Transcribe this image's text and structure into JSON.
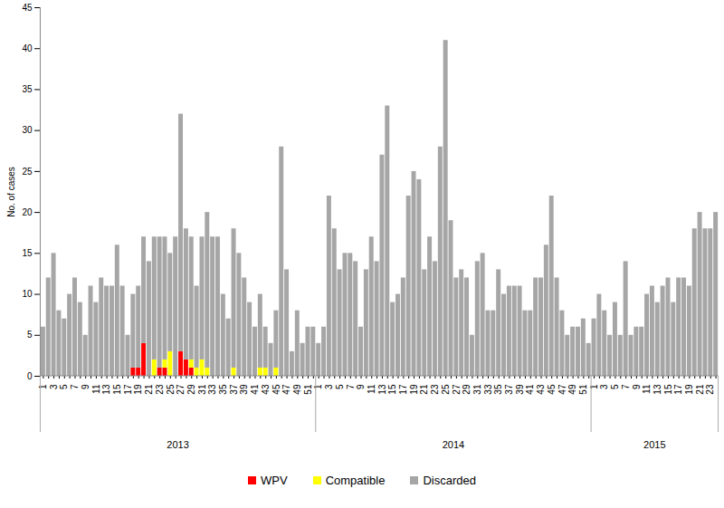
{
  "chart_data": {
    "type": "bar",
    "stacked": true,
    "y_label": "No. of cases",
    "ylim": [
      0,
      45
    ],
    "yticks": [
      0,
      5,
      10,
      15,
      20,
      25,
      30,
      35,
      40,
      45
    ],
    "grid": false,
    "legend": "bottom",
    "groups": [
      {
        "label": "2013",
        "count": 52
      },
      {
        "label": "2014",
        "count": 52
      },
      {
        "label": "2015",
        "count": 24
      }
    ],
    "categories": [
      "1",
      null,
      "3",
      null,
      "5",
      null,
      "7",
      null,
      "9",
      null,
      "11",
      null,
      "13",
      null,
      "15",
      null,
      "17",
      null,
      "19",
      null,
      "21",
      null,
      "23",
      null,
      "25",
      null,
      "27",
      null,
      "29",
      null,
      "31",
      null,
      "33",
      null,
      "35",
      null,
      "37",
      null,
      "39",
      null,
      "41",
      null,
      "43",
      null,
      "45",
      null,
      "47",
      null,
      "49",
      null,
      "51",
      null,
      "1",
      null,
      "3",
      null,
      "5",
      null,
      "7",
      null,
      "9",
      null,
      "11",
      null,
      "13",
      null,
      "15",
      null,
      "17",
      null,
      "19",
      null,
      "21",
      null,
      "23",
      null,
      "25",
      null,
      "27",
      null,
      "29",
      null,
      "31",
      null,
      "33",
      null,
      "35",
      null,
      "37",
      null,
      "39",
      null,
      "41",
      null,
      "43",
      null,
      "45",
      null,
      "47",
      null,
      "49",
      null,
      "51",
      null,
      "1",
      null,
      "3",
      null,
      "5",
      null,
      "7",
      null,
      "9",
      null,
      "11",
      null,
      "13",
      null,
      "15",
      null,
      "17",
      null,
      "19",
      null,
      "21",
      null,
      "23",
      null
    ],
    "series": [
      {
        "name": "WPV",
        "color": "#ff0000",
        "values": [
          0,
          0,
          0,
          0,
          0,
          0,
          0,
          0,
          0,
          0,
          0,
          0,
          0,
          0,
          0,
          0,
          0,
          1,
          1,
          4,
          0,
          0,
          1,
          1,
          0,
          0,
          3,
          2,
          1,
          0,
          0,
          0,
          0,
          0,
          0,
          0,
          0,
          0,
          0,
          0,
          0,
          0,
          0,
          0,
          0,
          0,
          0,
          0,
          0,
          0,
          0,
          0,
          0,
          0,
          0,
          0,
          0,
          0,
          0,
          0,
          0,
          0,
          0,
          0,
          0,
          0,
          0,
          0,
          0,
          0,
          0,
          0,
          0,
          0,
          0,
          0,
          0,
          0,
          0,
          0,
          0,
          0,
          0,
          0,
          0,
          0,
          0,
          0,
          0,
          0,
          0,
          0,
          0,
          0,
          0,
          0,
          0,
          0,
          0,
          0,
          0,
          0,
          0,
          0,
          0,
          0,
          0,
          0,
          0,
          0,
          0,
          0,
          0,
          0,
          0,
          0,
          0,
          0,
          0,
          0,
          0,
          0,
          0,
          0,
          0,
          0,
          0,
          0
        ]
      },
      {
        "name": "Compatible",
        "color": "#ffff00",
        "values": [
          0,
          0,
          0,
          0,
          0,
          0,
          0,
          0,
          0,
          0,
          0,
          0,
          0,
          0,
          0,
          0,
          0,
          0,
          0,
          0,
          0,
          2,
          0,
          1,
          3,
          0,
          0,
          0,
          1,
          1,
          2,
          1,
          0,
          0,
          0,
          0,
          1,
          0,
          0,
          0,
          0,
          1,
          1,
          0,
          1,
          0,
          0,
          0,
          0,
          0,
          0,
          0,
          0,
          0,
          0,
          0,
          0,
          0,
          0,
          0,
          0,
          0,
          0,
          0,
          0,
          0,
          0,
          0,
          0,
          0,
          0,
          0,
          0,
          0,
          0,
          0,
          0,
          0,
          0,
          0,
          0,
          0,
          0,
          0,
          0,
          0,
          0,
          0,
          0,
          0,
          0,
          0,
          0,
          0,
          0,
          0,
          0,
          0,
          0,
          0,
          0,
          0,
          0,
          0,
          0,
          0,
          0,
          0,
          0,
          0,
          0,
          0,
          0,
          0,
          0,
          0,
          0,
          0,
          0,
          0,
          0,
          0,
          0,
          0,
          0,
          0,
          0,
          0
        ]
      },
      {
        "name": "Discarded",
        "color": "#a6a6a6",
        "values": [
          6,
          12,
          15,
          8,
          7,
          10,
          12,
          9,
          5,
          11,
          9,
          12,
          11,
          11,
          16,
          11,
          5,
          9,
          10,
          13,
          14,
          15,
          16,
          15,
          12,
          17,
          29,
          16,
          15,
          10,
          15,
          19,
          17,
          17,
          10,
          7,
          17,
          15,
          12,
          9,
          6,
          9,
          5,
          4,
          7,
          28,
          13,
          3,
          8,
          4,
          6,
          6,
          4,
          6,
          22,
          18,
          13,
          15,
          15,
          14,
          6,
          13,
          17,
          14,
          27,
          33,
          9,
          10,
          12,
          22,
          25,
          24,
          13,
          17,
          14,
          28,
          41,
          19,
          12,
          13,
          12,
          5,
          14,
          15,
          8,
          8,
          13,
          10,
          11,
          11,
          11,
          8,
          8,
          12,
          12,
          16,
          22,
          12,
          8,
          5,
          6,
          6,
          7,
          4,
          7,
          10,
          8,
          5,
          9,
          5,
          14,
          5,
          6,
          6,
          10,
          11,
          9,
          11,
          12,
          9,
          12,
          12,
          11,
          18,
          20,
          18,
          18,
          20
        ]
      }
    ]
  }
}
